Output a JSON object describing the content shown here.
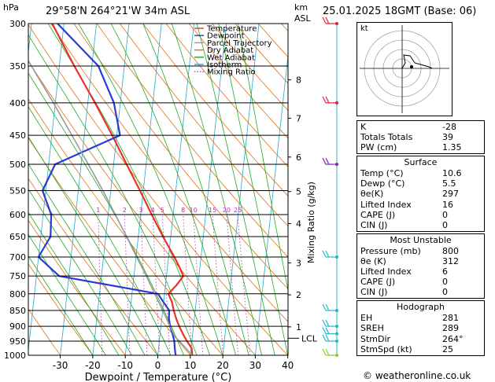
{
  "header": {
    "hpa_label": "hPa",
    "location": "29°58'N  264°21'W  34m  ASL",
    "km_label": "km",
    "asl_label": "ASL",
    "datetime": "25.01.2025  18GMT  (Base: 06)"
  },
  "chart_data": {
    "type": "line",
    "title": "",
    "xlabel": "Dewpoint / Temperature (°C)",
    "ylabel": "hPa",
    "mixing_ratio_axis_label": "Mixing Ratio (g/kg)",
    "pressure_ticks": [
      300,
      350,
      400,
      450,
      500,
      550,
      600,
      650,
      700,
      750,
      800,
      850,
      900,
      950,
      1000
    ],
    "temperature_ticks": [
      -30,
      -20,
      -10,
      0,
      10,
      20,
      30,
      40
    ],
    "temperature_tick_labels": [
      "-30",
      "-20",
      "-10",
      "0",
      "10",
      "20",
      "30",
      "40"
    ],
    "km_ticks": [
      {
        "km": "8",
        "p": 368
      },
      {
        "km": "7",
        "p": 423
      },
      {
        "km": "6",
        "p": 487
      },
      {
        "km": "5",
        "p": 552
      },
      {
        "km": "4",
        "p": 620
      },
      {
        "km": "3",
        "p": 715
      },
      {
        "km": "2",
        "p": 803
      },
      {
        "km": "1",
        "p": 902
      }
    ],
    "lcl": {
      "label": "LCL",
      "p": 940
    },
    "mixing_ratio_labels": [
      "1",
      "2",
      "3",
      "4",
      "5",
      "8",
      "10",
      "15",
      "20",
      "25"
    ],
    "legend": [
      {
        "name": "Temperature",
        "color": "#e8322a",
        "style": "solid"
      },
      {
        "name": "Dewpoint",
        "color": "#2a3ad6",
        "style": "solid"
      },
      {
        "name": "Parcel Trajectory",
        "color": "#999999",
        "style": "solid"
      },
      {
        "name": "Dry Adiabat",
        "color": "#e07010",
        "style": "solid"
      },
      {
        "name": "Wet Adiabat",
        "color": "#22aa22",
        "style": "solid"
      },
      {
        "name": "Isotherm",
        "color": "#22aacc",
        "style": "solid"
      },
      {
        "name": "Mixing Ratio",
        "color": "#cc22cc",
        "style": "dotted"
      }
    ],
    "series": [
      {
        "name": "Temperature",
        "color": "#e8322a",
        "points": [
          [
            1000,
            10.6
          ],
          [
            975,
            10.2
          ],
          [
            950,
            8.5
          ],
          [
            925,
            7.0
          ],
          [
            900,
            5.6
          ],
          [
            875,
            4.4
          ],
          [
            850,
            3.4
          ],
          [
            825,
            2.6
          ],
          [
            800,
            1.2
          ],
          [
            775,
            3.4
          ],
          [
            750,
            5.2
          ],
          [
            725,
            3.6
          ],
          [
            700,
            1.8
          ],
          [
            650,
            -2.4
          ],
          [
            600,
            -6.6
          ],
          [
            550,
            -11.0
          ],
          [
            500,
            -16.0
          ],
          [
            450,
            -21.4
          ],
          [
            400,
            -27.8
          ],
          [
            350,
            -35.4
          ],
          [
            300,
            -43.6
          ]
        ]
      },
      {
        "name": "Dewpoint",
        "color": "#2a3ad6",
        "points": [
          [
            1000,
            5.5
          ],
          [
            975,
            5.0
          ],
          [
            950,
            4.6
          ],
          [
            925,
            3.8
          ],
          [
            900,
            2.8
          ],
          [
            875,
            2.2
          ],
          [
            850,
            2.0
          ],
          [
            825,
            0.0
          ],
          [
            800,
            -2.0
          ],
          [
            750,
            -33.0
          ],
          [
            700,
            -40.0
          ],
          [
            650,
            -37.0
          ],
          [
            600,
            -37.5
          ],
          [
            550,
            -41.0
          ],
          [
            500,
            -38.0
          ],
          [
            450,
            -19.0
          ],
          [
            400,
            -22.0
          ],
          [
            350,
            -28.0
          ],
          [
            300,
            -42.0
          ]
        ]
      },
      {
        "name": "Parcel Trajectory",
        "color": "#999999",
        "points": [
          [
            1000,
            10.6
          ],
          [
            950,
            6.2
          ],
          [
            935,
            4.6
          ],
          [
            900,
            2.8
          ],
          [
            850,
            0.0
          ],
          [
            800,
            -3.0
          ],
          [
            750,
            -6.2
          ],
          [
            700,
            -9.8
          ],
          [
            650,
            -13.6
          ],
          [
            600,
            -17.8
          ],
          [
            550,
            -22.4
          ],
          [
            500,
            -27.8
          ],
          [
            450,
            -33.8
          ],
          [
            400,
            -40.6
          ],
          [
            350,
            -48.6
          ],
          [
            300,
            -57.4
          ]
        ]
      }
    ],
    "x_range": [
      -35,
      40
    ],
    "y_range": [
      300,
      1000
    ],
    "log_pressure": true,
    "skew_per_decade": 88,
    "wind_barbs_levels": [
      300,
      400,
      500,
      700,
      850,
      900,
      925,
      950,
      1000
    ]
  },
  "hodograph": {
    "label": "kt"
  },
  "indices": {
    "rows": [
      {
        "k": "K",
        "v": "-28"
      },
      {
        "k": "Totals Totals",
        "v": "39"
      },
      {
        "k": "PW (cm)",
        "v": "1.35"
      }
    ]
  },
  "surface": {
    "title": "Surface",
    "rows": [
      {
        "k": "Temp (°C)",
        "v": "10.6"
      },
      {
        "k": "Dewp (°C)",
        "v": "5.5"
      },
      {
        "k": "θe(K)",
        "v": "297"
      },
      {
        "k": "Lifted Index",
        "v": "16"
      },
      {
        "k": "CAPE (J)",
        "v": "0"
      },
      {
        "k": "CIN (J)",
        "v": "0"
      }
    ]
  },
  "most_unstable": {
    "title": "Most Unstable",
    "rows": [
      {
        "k": "Pressure (mb)",
        "v": "800"
      },
      {
        "k": "θe (K)",
        "v": "312"
      },
      {
        "k": "Lifted Index",
        "v": "6"
      },
      {
        "k": "CAPE (J)",
        "v": "0"
      },
      {
        "k": "CIN (J)",
        "v": "0"
      }
    ]
  },
  "hodograph_params": {
    "title": "Hodograph",
    "rows": [
      {
        "k": "EH",
        "v": "281"
      },
      {
        "k": "SREH",
        "v": "289"
      },
      {
        "k": "StmDir",
        "v": "264°"
      },
      {
        "k": "StmSpd (kt)",
        "v": "25"
      }
    ]
  },
  "credit": "© weatheronline.co.uk"
}
